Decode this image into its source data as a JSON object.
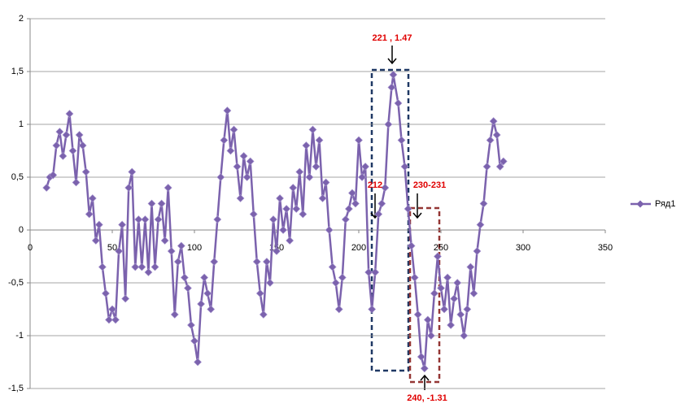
{
  "chart_data": {
    "type": "line",
    "series": [
      {
        "name": "Ряд1",
        "color": "#7b62ad",
        "x": [
          10,
          12,
          14,
          16,
          18,
          20,
          22,
          24,
          26,
          28,
          30,
          32,
          34,
          36,
          38,
          40,
          42,
          44,
          46,
          48,
          50,
          52,
          54,
          56,
          58,
          60,
          62,
          64,
          66,
          68,
          70,
          72,
          74,
          76,
          78,
          80,
          82,
          84,
          86,
          88,
          90,
          92,
          94,
          96,
          98,
          100,
          102,
          104,
          106,
          108,
          110,
          112,
          114,
          116,
          118,
          120,
          122,
          124,
          126,
          128,
          130,
          132,
          134,
          136,
          138,
          140,
          142,
          144,
          146,
          148,
          150,
          152,
          154,
          156,
          158,
          160,
          162,
          164,
          166,
          168,
          170,
          172,
          174,
          176,
          178,
          180,
          182,
          184,
          186,
          188,
          190,
          192,
          194,
          196,
          198,
          200,
          202,
          204,
          206,
          208,
          210,
          212,
          214,
          216,
          218,
          220,
          221,
          224,
          226,
          228,
          230,
          232,
          234,
          236,
          238,
          240,
          242,
          244,
          246,
          248,
          250,
          252,
          254,
          256,
          258,
          260,
          262,
          264,
          266,
          268,
          270,
          272,
          274,
          276,
          278,
          280,
          282,
          284,
          286,
          288
        ],
        "values": [
          0.4,
          0.5,
          0.52,
          0.8,
          0.93,
          0.7,
          0.9,
          1.1,
          0.75,
          0.45,
          0.9,
          0.8,
          0.55,
          0.15,
          0.3,
          -0.1,
          0.05,
          -0.35,
          -0.6,
          -0.85,
          -0.75,
          -0.85,
          -0.2,
          0.05,
          -0.65,
          0.4,
          0.55,
          -0.35,
          0.1,
          -0.35,
          0.1,
          -0.4,
          0.25,
          -0.35,
          0.1,
          0.25,
          -0.1,
          0.4,
          -0.2,
          -0.8,
          -0.3,
          -0.15,
          -0.45,
          -0.55,
          -0.9,
          -1.05,
          -1.25,
          -0.7,
          -0.45,
          -0.6,
          -0.75,
          -0.3,
          0.1,
          0.5,
          0.85,
          1.13,
          0.75,
          0.95,
          0.6,
          0.3,
          0.7,
          0.5,
          0.65,
          0.15,
          -0.3,
          -0.6,
          -0.8,
          -0.3,
          -0.5,
          0.1,
          -0.2,
          0.3,
          0,
          0.2,
          -0.1,
          0.4,
          0.2,
          0.55,
          0.15,
          0.8,
          0.5,
          0.95,
          0.6,
          0.85,
          0.3,
          0.45,
          0,
          -0.35,
          -0.5,
          -0.75,
          -0.45,
          0.1,
          0.2,
          0.35,
          0.25,
          0.85,
          0.5,
          0.6,
          -0.4,
          -0.75,
          -0.4,
          0.15,
          0.25,
          0.4,
          1.0,
          1.35,
          1.47,
          1.2,
          0.85,
          0.6,
          0.2,
          -0.15,
          -0.45,
          -0.8,
          -1.2,
          -1.31,
          -0.85,
          -1.0,
          -0.6,
          -0.25,
          -0.55,
          -0.75,
          -0.45,
          -0.9,
          -0.65,
          -0.5,
          -0.8,
          -1.0,
          -0.75,
          -0.35,
          -0.6,
          -0.2,
          0.05,
          0.25,
          0.6,
          0.85,
          1.03,
          0.9,
          0.6,
          0.65
        ]
      }
    ],
    "xlim": [
      0,
      350
    ],
    "xticks": [
      0,
      50,
      100,
      150,
      200,
      250,
      300,
      350
    ],
    "ylim": [
      -1.5,
      2
    ],
    "yticks": [
      {
        "value": -1.5,
        "label": "-1,5"
      },
      -1,
      {
        "value": -0.5,
        "label": "-0,5"
      },
      0,
      {
        "value": 0.5,
        "label": "0,5"
      },
      1,
      {
        "value": 1.5,
        "label": "1,5"
      },
      2
    ],
    "grid": true,
    "legend": "right",
    "annotations": [
      "221 , 1.47",
      "212",
      "230-231",
      "240, -1.31"
    ]
  }
}
